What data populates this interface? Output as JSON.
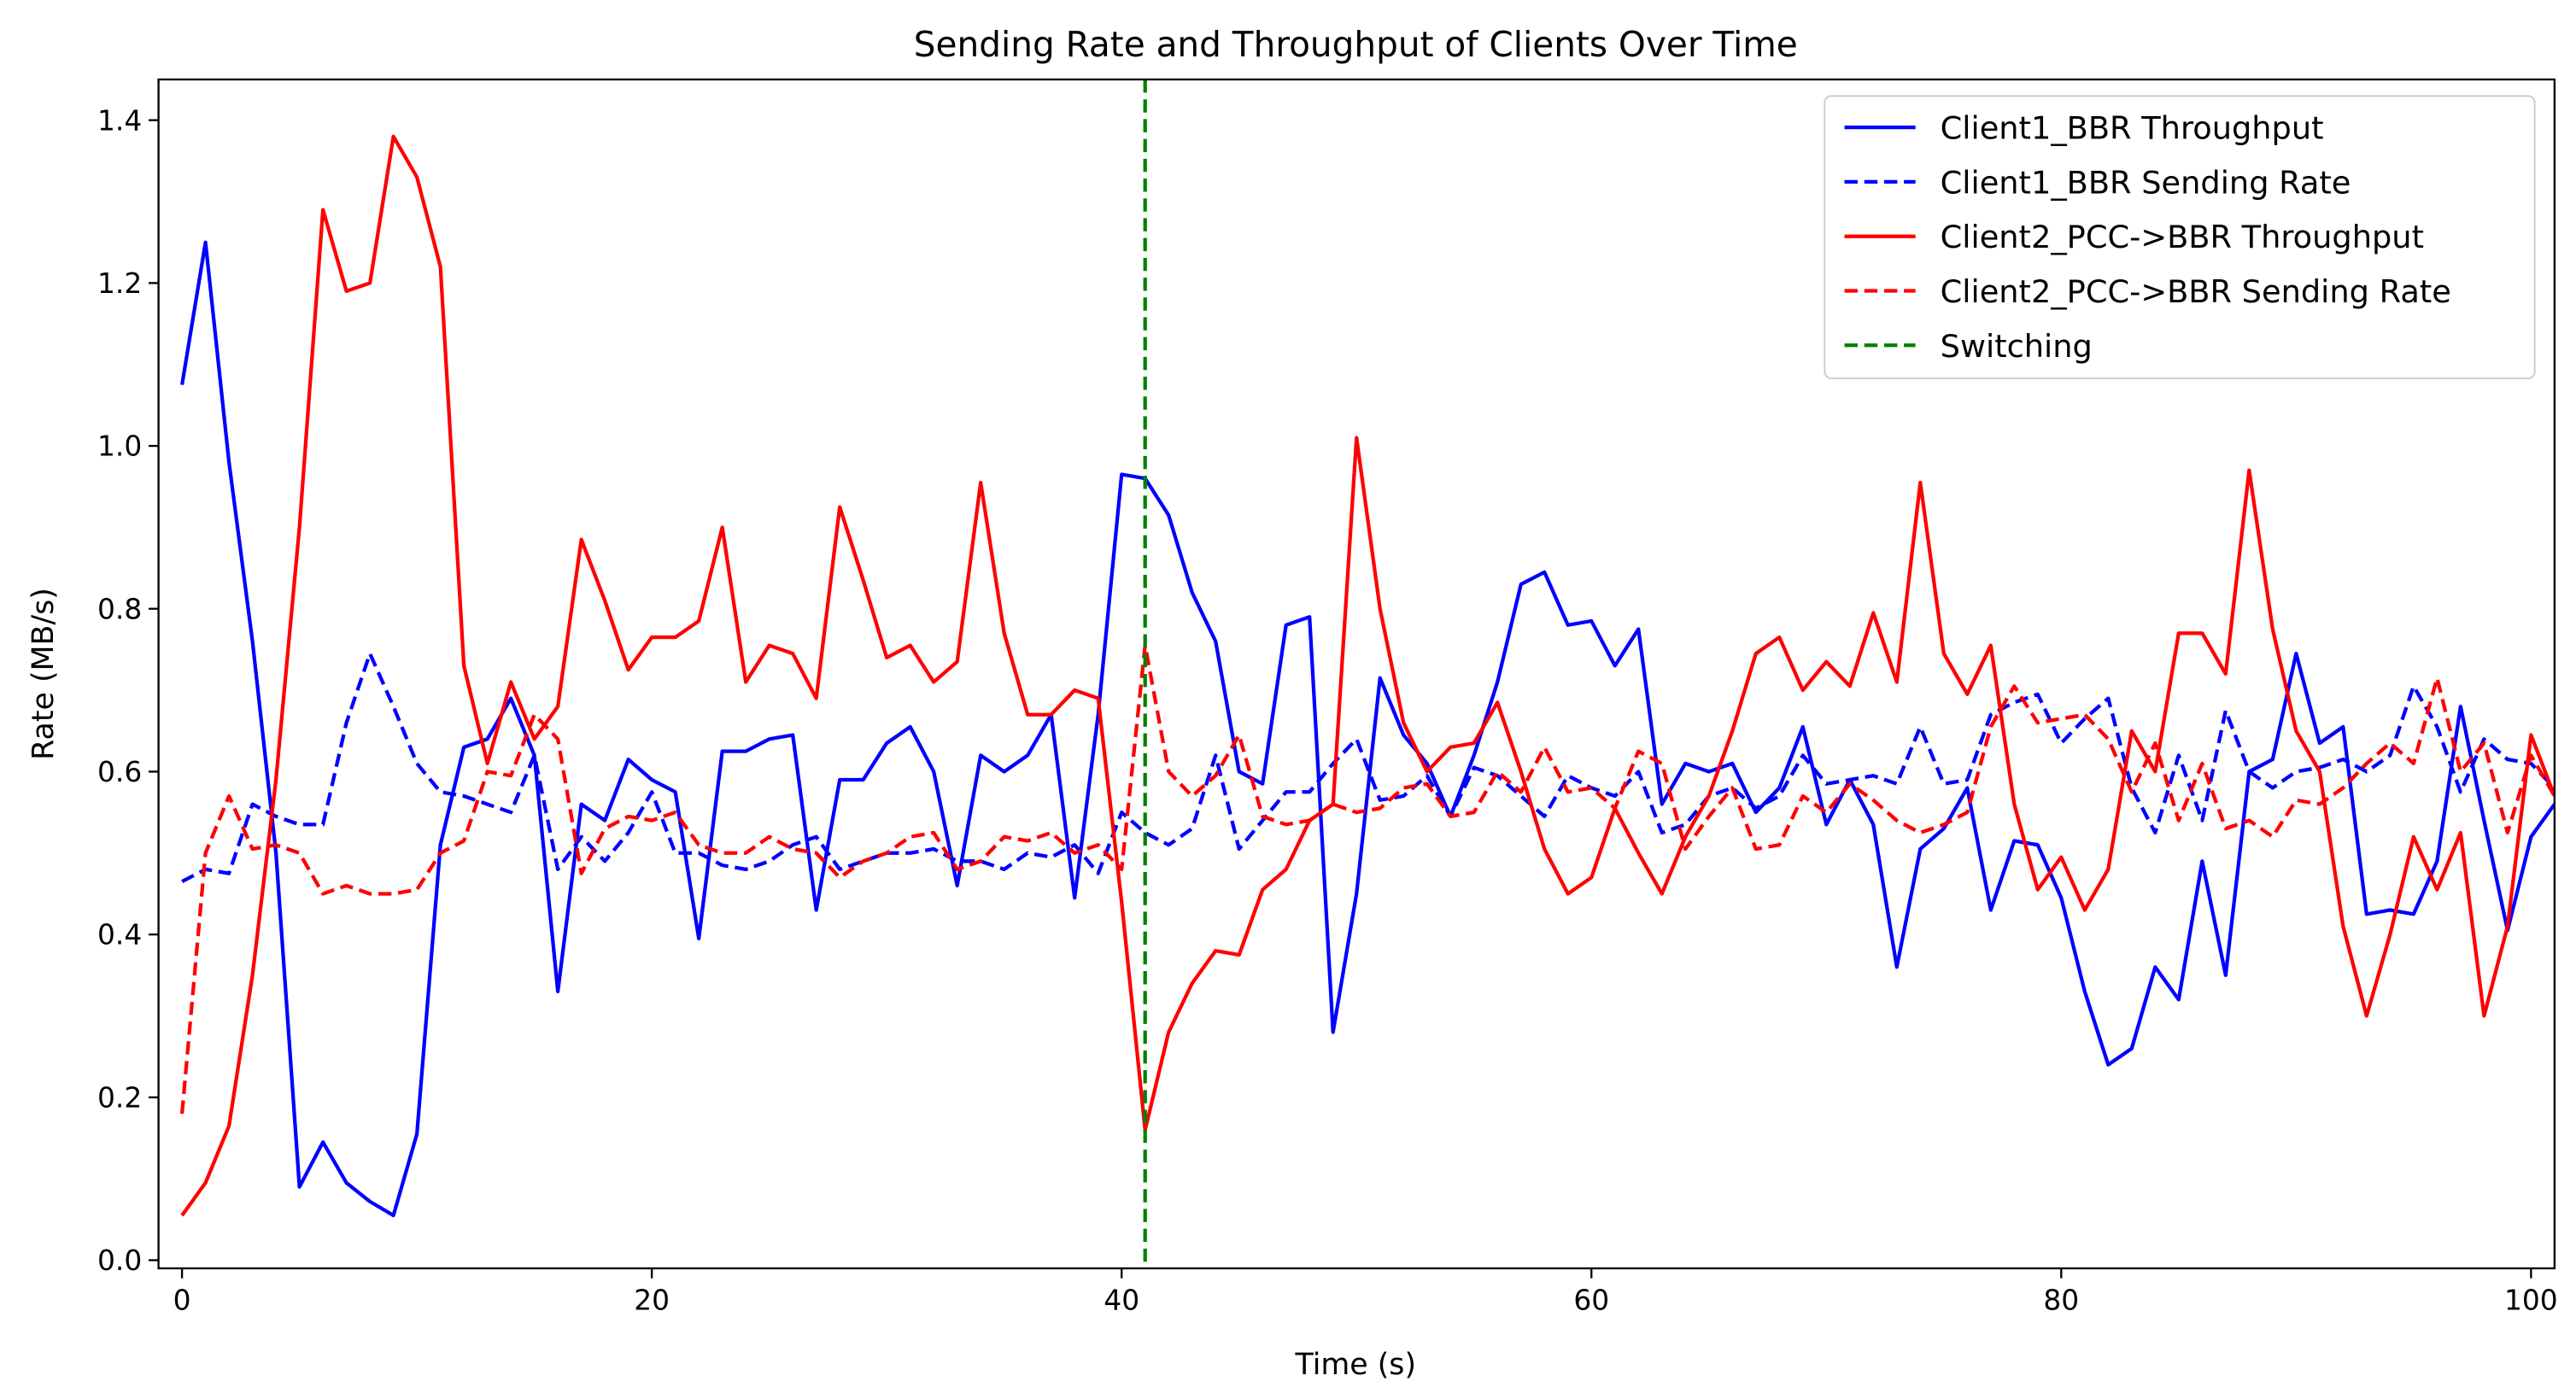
{
  "chart_data": {
    "type": "line",
    "title": "Sending Rate and Throughput of Clients Over Time",
    "xlabel": "Time (s)",
    "ylabel": "Rate (MB/s)",
    "x": [
      0,
      1,
      2,
      3,
      4,
      5,
      6,
      7,
      8,
      9,
      10,
      11,
      12,
      13,
      14,
      15,
      16,
      17,
      18,
      19,
      20,
      21,
      22,
      23,
      24,
      25,
      26,
      27,
      28,
      29,
      30,
      31,
      32,
      33,
      34,
      35,
      36,
      37,
      38,
      39,
      40,
      41,
      42,
      43,
      44,
      45,
      46,
      47,
      48,
      49,
      50,
      51,
      52,
      53,
      54,
      55,
      56,
      57,
      58,
      59,
      60,
      61,
      62,
      63,
      64,
      65,
      66,
      67,
      68,
      69,
      70,
      71,
      72,
      73,
      74,
      75,
      76,
      77,
      78,
      79,
      80,
      81,
      82,
      83,
      84,
      85,
      86,
      87,
      88,
      89,
      90,
      91,
      92,
      93,
      94,
      95,
      96,
      97,
      98,
      99,
      100,
      101
    ],
    "series": [
      {
        "name": "Client1_BBR Throughput",
        "color": "#0000ff",
        "dashed": false,
        "values": [
          1.075,
          1.25,
          0.98,
          0.76,
          0.5,
          0.09,
          0.145,
          0.095,
          0.072,
          0.055,
          0.155,
          0.51,
          0.63,
          0.64,
          0.69,
          0.62,
          0.33,
          0.56,
          0.54,
          0.615,
          0.59,
          0.575,
          0.395,
          0.625,
          0.625,
          0.64,
          0.645,
          0.43,
          0.59,
          0.59,
          0.635,
          0.655,
          0.6,
          0.46,
          0.62,
          0.6,
          0.62,
          0.67,
          0.445,
          0.67,
          0.965,
          0.96,
          0.915,
          0.82,
          0.76,
          0.6,
          0.585,
          0.78,
          0.79,
          0.28,
          0.45,
          0.715,
          0.645,
          0.61,
          0.545,
          0.62,
          0.71,
          0.83,
          0.845,
          0.78,
          0.785,
          0.73,
          0.775,
          0.56,
          0.61,
          0.6,
          0.61,
          0.55,
          0.58,
          0.655,
          0.535,
          0.59,
          0.535,
          0.36,
          0.505,
          0.53,
          0.58,
          0.43,
          0.515,
          0.51,
          0.445,
          0.33,
          0.24,
          0.26,
          0.36,
          0.32,
          0.49,
          0.35,
          0.6,
          0.615,
          0.745,
          0.635,
          0.655,
          0.425,
          0.43,
          0.425,
          0.49,
          0.68,
          0.54,
          0.405,
          0.52,
          0.56
        ]
      },
      {
        "name": "Client1_BBR Sending Rate",
        "color": "#0000ff",
        "dashed": true,
        "values": [
          0.465,
          0.48,
          0.475,
          0.56,
          0.545,
          0.535,
          0.535,
          0.66,
          0.745,
          0.68,
          0.61,
          0.575,
          0.57,
          0.56,
          0.55,
          0.62,
          0.48,
          0.52,
          0.49,
          0.525,
          0.575,
          0.5,
          0.5,
          0.485,
          0.48,
          0.49,
          0.51,
          0.52,
          0.48,
          0.49,
          0.5,
          0.5,
          0.505,
          0.49,
          0.49,
          0.48,
          0.5,
          0.495,
          0.51,
          0.475,
          0.55,
          0.525,
          0.51,
          0.53,
          0.62,
          0.505,
          0.54,
          0.575,
          0.575,
          0.61,
          0.64,
          0.565,
          0.57,
          0.595,
          0.545,
          0.605,
          0.595,
          0.57,
          0.545,
          0.595,
          0.58,
          0.57,
          0.6,
          0.525,
          0.535,
          0.57,
          0.58,
          0.555,
          0.57,
          0.62,
          0.585,
          0.59,
          0.595,
          0.585,
          0.655,
          0.585,
          0.59,
          0.67,
          0.685,
          0.695,
          0.635,
          0.665,
          0.69,
          0.58,
          0.525,
          0.62,
          0.54,
          0.675,
          0.6,
          0.58,
          0.6,
          0.605,
          0.615,
          0.6,
          0.62,
          0.705,
          0.655,
          0.575,
          0.64,
          0.615,
          0.61,
          0.58
        ]
      },
      {
        "name": "Client2_PCC->BBR Throughput",
        "color": "#ff0000",
        "dashed": false,
        "values": [
          0.055,
          0.095,
          0.165,
          0.35,
          0.59,
          0.9,
          1.29,
          1.19,
          1.2,
          1.38,
          1.33,
          1.22,
          0.73,
          0.61,
          0.71,
          0.64,
          0.68,
          0.885,
          0.81,
          0.725,
          0.765,
          0.765,
          0.785,
          0.9,
          0.71,
          0.755,
          0.745,
          0.69,
          0.925,
          0.835,
          0.74,
          0.755,
          0.71,
          0.735,
          0.955,
          0.77,
          0.67,
          0.67,
          0.7,
          0.69,
          0.44,
          0.16,
          0.28,
          0.34,
          0.38,
          0.375,
          0.455,
          0.48,
          0.54,
          0.56,
          1.01,
          0.8,
          0.66,
          0.6,
          0.63,
          0.635,
          0.685,
          0.6,
          0.505,
          0.45,
          0.47,
          0.555,
          0.5,
          0.45,
          0.52,
          0.57,
          0.65,
          0.745,
          0.765,
          0.7,
          0.735,
          0.705,
          0.795,
          0.71,
          0.955,
          0.745,
          0.695,
          0.755,
          0.56,
          0.455,
          0.495,
          0.43,
          0.48,
          0.65,
          0.6,
          0.77,
          0.77,
          0.72,
          0.97,
          0.775,
          0.65,
          0.6,
          0.41,
          0.3,
          0.4,
          0.52,
          0.455,
          0.525,
          0.3,
          0.41,
          0.645,
          0.57
        ]
      },
      {
        "name": "Client2_PCC->BBR Sending Rate",
        "color": "#ff0000",
        "dashed": true,
        "values": [
          0.18,
          0.5,
          0.57,
          0.505,
          0.51,
          0.5,
          0.45,
          0.46,
          0.45,
          0.45,
          0.455,
          0.5,
          0.515,
          0.6,
          0.595,
          0.67,
          0.64,
          0.475,
          0.53,
          0.545,
          0.54,
          0.55,
          0.51,
          0.5,
          0.5,
          0.52,
          0.505,
          0.5,
          0.47,
          0.49,
          0.5,
          0.52,
          0.525,
          0.48,
          0.49,
          0.52,
          0.515,
          0.525,
          0.5,
          0.51,
          0.48,
          0.755,
          0.6,
          0.57,
          0.595,
          0.645,
          0.545,
          0.535,
          0.54,
          0.56,
          0.55,
          0.555,
          0.58,
          0.585,
          0.545,
          0.55,
          0.6,
          0.575,
          0.63,
          0.575,
          0.58,
          0.555,
          0.625,
          0.61,
          0.505,
          0.545,
          0.58,
          0.505,
          0.51,
          0.57,
          0.55,
          0.585,
          0.565,
          0.54,
          0.525,
          0.535,
          0.55,
          0.655,
          0.705,
          0.66,
          0.665,
          0.67,
          0.64,
          0.575,
          0.635,
          0.54,
          0.61,
          0.53,
          0.54,
          0.52,
          0.565,
          0.56,
          0.58,
          0.61,
          0.635,
          0.61,
          0.715,
          0.6,
          0.635,
          0.525,
          0.62,
          0.57
        ]
      }
    ],
    "vlines": [
      {
        "name": "Switching",
        "color": "#008000",
        "x": 41
      }
    ],
    "xlim": [
      -1,
      101
    ],
    "xticks": [
      0,
      20,
      40,
      60,
      80,
      100
    ],
    "ylim": [
      -0.01,
      1.45
    ],
    "yticks": [
      {
        "value": 0,
        "label": "0.0"
      },
      0.2,
      0.4,
      0.6,
      0.8,
      {
        "value": 1,
        "label": "1.0"
      },
      1.2,
      1.4
    ],
    "legend": "upper right"
  }
}
